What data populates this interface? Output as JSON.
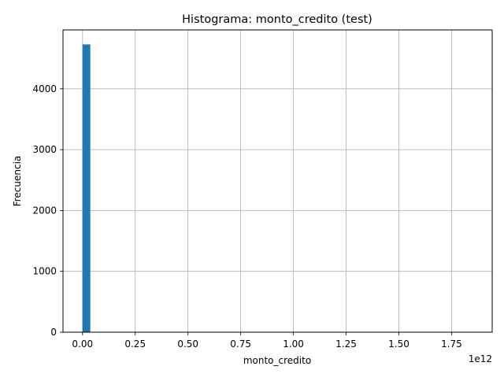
{
  "chart_data": {
    "type": "bar",
    "title": "Histograma: monto_credito (test)",
    "xlabel": "monto_credito",
    "ylabel": "Frecuencia",
    "x_offset_text": "1e12",
    "xlim": [
      -0.0925,
      1.9425
    ],
    "ylim": [
      0,
      4968
    ],
    "x_ticks": [
      0,
      0.25,
      0.5,
      0.75,
      1.0,
      1.25,
      1.5,
      1.75
    ],
    "x_tick_labels": [
      "0.00",
      "0.25",
      "0.50",
      "0.75",
      "1.00",
      "1.25",
      "1.50",
      "1.75"
    ],
    "y_ticks": [
      0,
      1000,
      2000,
      3000,
      4000
    ],
    "y_tick_labels": [
      "0",
      "1000",
      "2000",
      "3000",
      "4000"
    ],
    "grid": true,
    "bar_color": "#1f77b4",
    "bins": [
      {
        "x0": 0.0,
        "x1": 0.037,
        "count": 4730
      }
    ]
  }
}
